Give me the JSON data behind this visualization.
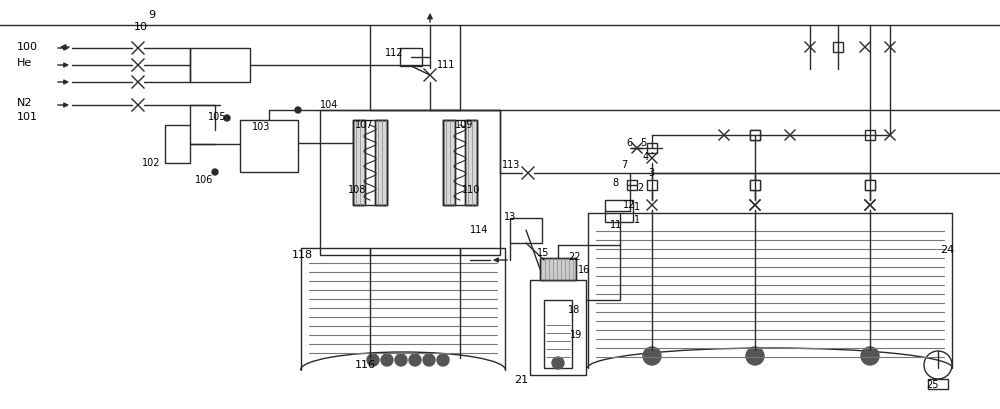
{
  "bg_color": "#ffffff",
  "line_color": "#2a2a2a",
  "lw": 1.0,
  "fig_w": 10.0,
  "fig_h": 4.09,
  "dpi": 100
}
